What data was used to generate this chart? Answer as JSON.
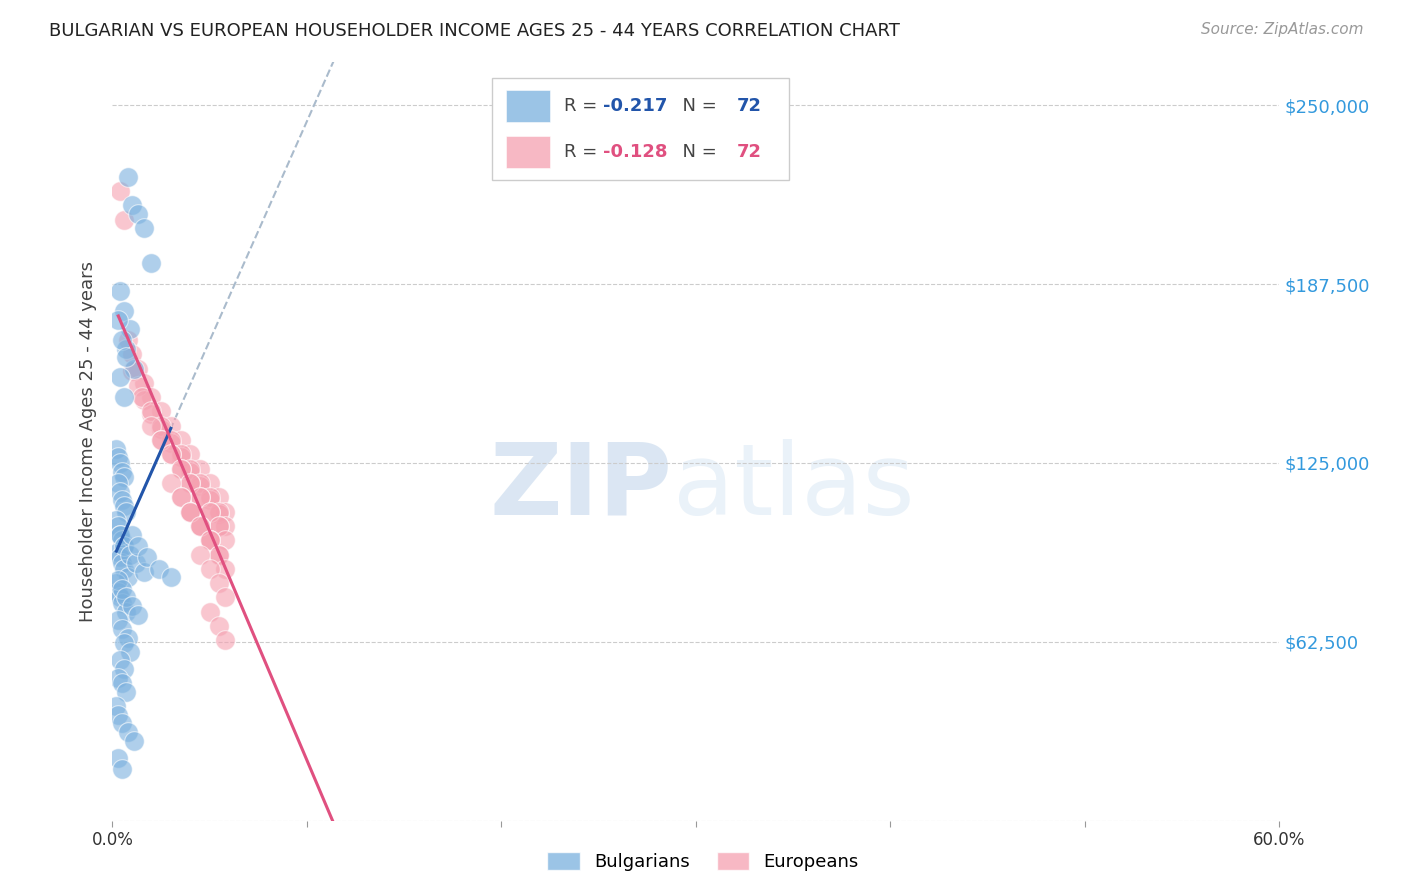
{
  "title": "BULGARIAN VS EUROPEAN HOUSEHOLDER INCOME AGES 25 - 44 YEARS CORRELATION CHART",
  "source": "Source: ZipAtlas.com",
  "ylabel": "Householder Income Ages 25 - 44 years",
  "xlim": [
    0.0,
    0.6
  ],
  "ylim": [
    0,
    265000
  ],
  "yticks": [
    0,
    62500,
    125000,
    187500,
    250000
  ],
  "ytick_labels": [
    "",
    "$62,500",
    "$125,000",
    "$187,500",
    "$250,000"
  ],
  "bg_color": "#ffffff",
  "grid_color": "#cccccc",
  "blue_color": "#7ab0de",
  "pink_color": "#f5a0b0",
  "blue_line_color": "#2255aa",
  "pink_line_color": "#e05080",
  "dashed_line_color": "#aabbcc",
  "bulgarians_x": [
    0.008,
    0.01,
    0.013,
    0.016,
    0.02,
    0.004,
    0.006,
    0.009,
    0.007,
    0.011,
    0.003,
    0.005,
    0.007,
    0.004,
    0.006,
    0.002,
    0.003,
    0.004,
    0.005,
    0.006,
    0.003,
    0.004,
    0.005,
    0.006,
    0.007,
    0.002,
    0.003,
    0.004,
    0.005,
    0.006,
    0.003,
    0.004,
    0.005,
    0.006,
    0.008,
    0.002,
    0.003,
    0.004,
    0.005,
    0.007,
    0.004,
    0.006,
    0.009,
    0.012,
    0.016,
    0.003,
    0.005,
    0.007,
    0.01,
    0.013,
    0.003,
    0.005,
    0.008,
    0.006,
    0.009,
    0.004,
    0.006,
    0.003,
    0.005,
    0.007,
    0.01,
    0.013,
    0.018,
    0.024,
    0.03,
    0.002,
    0.003,
    0.005,
    0.008,
    0.011,
    0.003,
    0.005
  ],
  "bulgarians_y": [
    225000,
    215000,
    212000,
    207000,
    195000,
    185000,
    178000,
    172000,
    165000,
    158000,
    175000,
    168000,
    162000,
    155000,
    148000,
    130000,
    127000,
    125000,
    122000,
    120000,
    118000,
    115000,
    112000,
    110000,
    108000,
    105000,
    103000,
    100000,
    98000,
    96000,
    94000,
    92000,
    90000,
    88000,
    85000,
    83000,
    80000,
    78000,
    76000,
    73000,
    100000,
    96000,
    93000,
    90000,
    87000,
    84000,
    81000,
    78000,
    75000,
    72000,
    70000,
    67000,
    64000,
    62000,
    59000,
    56000,
    53000,
    50000,
    48000,
    45000,
    100000,
    96000,
    92000,
    88000,
    85000,
    40000,
    37000,
    34000,
    31000,
    28000,
    22000,
    18000
  ],
  "europeans_x": [
    0.004,
    0.006,
    0.008,
    0.01,
    0.013,
    0.016,
    0.02,
    0.025,
    0.03,
    0.035,
    0.04,
    0.045,
    0.05,
    0.055,
    0.058,
    0.01,
    0.013,
    0.016,
    0.02,
    0.025,
    0.03,
    0.035,
    0.04,
    0.045,
    0.05,
    0.055,
    0.015,
    0.02,
    0.025,
    0.03,
    0.035,
    0.04,
    0.045,
    0.05,
    0.055,
    0.058,
    0.02,
    0.025,
    0.03,
    0.035,
    0.04,
    0.045,
    0.05,
    0.055,
    0.025,
    0.03,
    0.035,
    0.04,
    0.045,
    0.05,
    0.055,
    0.058,
    0.03,
    0.035,
    0.04,
    0.045,
    0.05,
    0.035,
    0.04,
    0.045,
    0.05,
    0.055,
    0.04,
    0.045,
    0.05,
    0.055,
    0.058,
    0.045,
    0.05,
    0.055,
    0.058,
    0.05,
    0.055,
    0.058
  ],
  "europeans_y": [
    220000,
    210000,
    168000,
    163000,
    158000,
    153000,
    148000,
    143000,
    138000,
    133000,
    128000,
    123000,
    118000,
    113000,
    108000,
    157000,
    152000,
    147000,
    142000,
    137000,
    132000,
    127000,
    122000,
    117000,
    112000,
    107000,
    148000,
    143000,
    138000,
    133000,
    128000,
    123000,
    118000,
    113000,
    108000,
    103000,
    138000,
    133000,
    128000,
    123000,
    118000,
    113000,
    108000,
    103000,
    133000,
    128000,
    123000,
    118000,
    113000,
    108000,
    103000,
    98000,
    118000,
    113000,
    108000,
    103000,
    98000,
    113000,
    108000,
    103000,
    98000,
    93000,
    108000,
    103000,
    98000,
    93000,
    88000,
    93000,
    88000,
    83000,
    78000,
    73000,
    68000,
    63000
  ]
}
